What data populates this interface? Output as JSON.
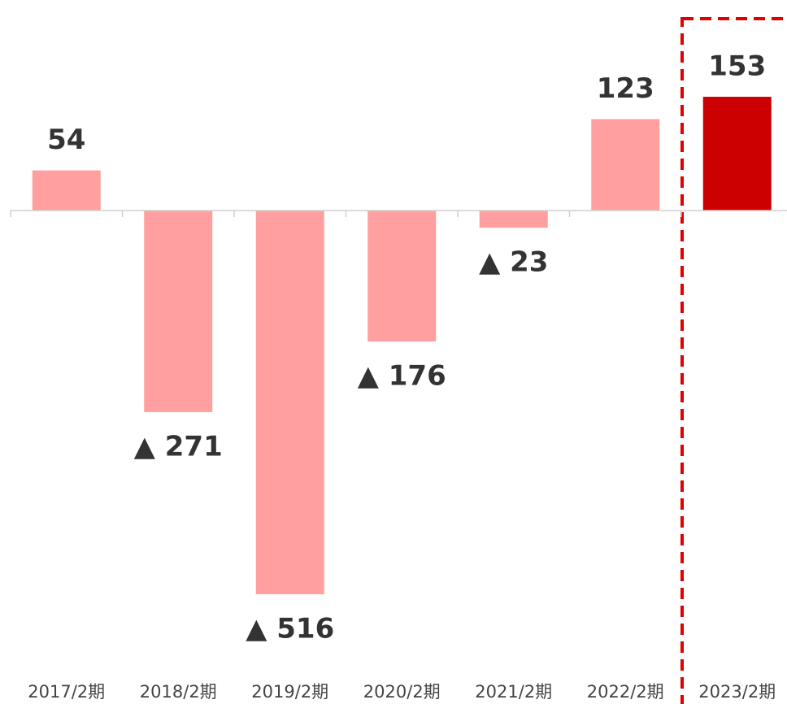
{
  "chart_data": {
    "type": "bar",
    "categories": [
      "2017/2期",
      "2018/2期",
      "2019/2期",
      "2020/2期",
      "2021/2期",
      "2022/2期",
      "2023/2期"
    ],
    "values": [
      54,
      -271,
      -516,
      -176,
      -23,
      123,
      153
    ],
    "value_labels": [
      "54",
      "▲ 271",
      "▲ 516",
      "▲ 176",
      "▲ 23",
      "123",
      "153"
    ],
    "colors": [
      "#ff9f9f",
      "#ff9f9f",
      "#ff9f9f",
      "#ff9f9f",
      "#ff9f9f",
      "#ff9f9f",
      "#cc0000"
    ]
  }
}
